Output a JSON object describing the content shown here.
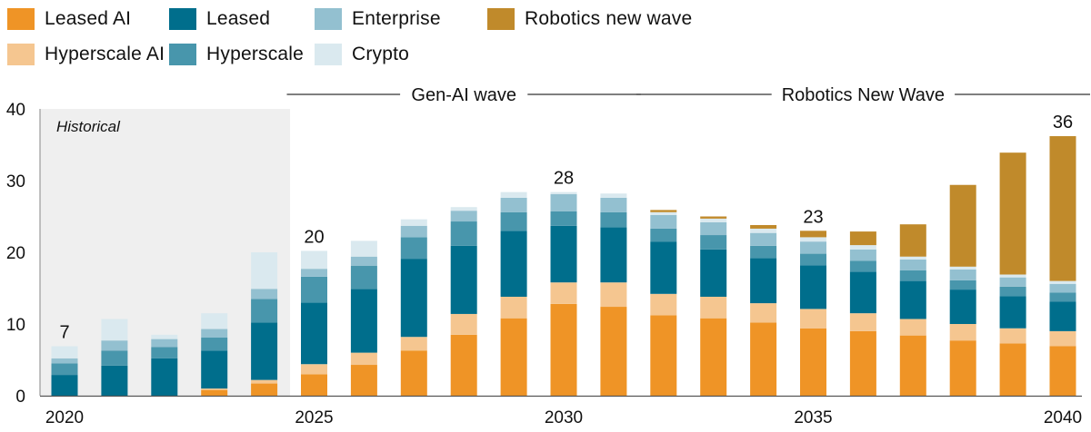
{
  "chart_data": {
    "type": "bar",
    "stacked": true,
    "title": "",
    "xlabel": "",
    "ylabel": "",
    "ylim": [
      0,
      40
    ],
    "yticks": [
      0,
      10,
      20,
      30,
      40
    ],
    "grid": false,
    "legend_position": "top",
    "categories": [
      "2020",
      "2021",
      "2022",
      "2023",
      "2024",
      "2025",
      "2026",
      "2027",
      "2028",
      "2029",
      "2030",
      "2031",
      "2032",
      "2033",
      "2034",
      "2035",
      "2036",
      "2037",
      "2038",
      "2039",
      "2040"
    ],
    "xtick_labels": [
      {
        "index": 0,
        "label": "2020"
      },
      {
        "index": 5,
        "label": "2025"
      },
      {
        "index": 10,
        "label": "2030"
      },
      {
        "index": 15,
        "label": "2035"
      },
      {
        "index": 20,
        "label": "2040"
      }
    ],
    "series": [
      {
        "name": "Leased AI",
        "color": "#EF9426",
        "values": [
          0,
          0,
          0,
          0.8,
          1.7,
          3.0,
          4.3,
          6.3,
          8.5,
          10.8,
          12.8,
          12.4,
          11.2,
          10.8,
          10.2,
          9.4,
          9.0,
          8.4,
          7.7,
          7.3,
          6.9
        ]
      },
      {
        "name": "Hyperscale AI",
        "color": "#F5C690",
        "values": [
          0,
          0,
          0,
          0.2,
          0.5,
          1.4,
          1.7,
          1.9,
          2.9,
          3.0,
          3.0,
          3.4,
          3.0,
          3.0,
          2.7,
          2.7,
          2.5,
          2.3,
          2.3,
          2.1,
          2.1
        ]
      },
      {
        "name": "Leased",
        "color": "#006E8C",
        "values": [
          2.9,
          4.2,
          5.2,
          5.3,
          8.0,
          8.6,
          8.9,
          10.9,
          9.5,
          9.2,
          7.9,
          7.7,
          7.3,
          6.6,
          6.3,
          6.1,
          5.8,
          5.3,
          4.8,
          4.5,
          4.1
        ]
      },
      {
        "name": "Hyperscale",
        "color": "#4896AC",
        "values": [
          1.6,
          2.1,
          1.6,
          1.8,
          3.3,
          3.6,
          3.2,
          3.0,
          3.4,
          2.6,
          2.0,
          2.1,
          1.8,
          2.0,
          1.7,
          1.6,
          1.5,
          1.5,
          1.3,
          1.3,
          1.3
        ]
      },
      {
        "name": "Enterprise",
        "color": "#93C0D0",
        "values": [
          0.7,
          1.4,
          1.1,
          1.2,
          1.4,
          1.1,
          1.3,
          1.6,
          1.5,
          2.0,
          2.4,
          2.0,
          1.9,
          1.8,
          1.8,
          1.7,
          1.6,
          1.5,
          1.5,
          1.3,
          1.2
        ]
      },
      {
        "name": "Crypto",
        "color": "#DAE9EF",
        "values": [
          1.7,
          3.0,
          0.6,
          2.2,
          5.1,
          2.5,
          2.2,
          0.9,
          0.5,
          0.8,
          0.3,
          0.6,
          0.4,
          0.5,
          0.6,
          0.6,
          0.6,
          0.4,
          0.4,
          0.4,
          0.4
        ]
      },
      {
        "name": "Robotics new wave",
        "color": "#C08A2B",
        "values": [
          0,
          0,
          0,
          0,
          0,
          0,
          0,
          0,
          0,
          0,
          0,
          0,
          0.3,
          0.3,
          0.5,
          0.9,
          1.9,
          4.5,
          11.4,
          17.0,
          20.2
        ]
      }
    ],
    "total_labels": [
      {
        "index": 0,
        "label": "7"
      },
      {
        "index": 5,
        "label": "20"
      },
      {
        "index": 10,
        "label": "28"
      },
      {
        "index": 15,
        "label": "23"
      },
      {
        "index": 20,
        "label": "36"
      }
    ],
    "annotations": {
      "historical": {
        "label": "Historical",
        "from_index": 0,
        "to_index": 4
      },
      "waves": [
        {
          "label": "Gen-AI wave",
          "from_index": 5,
          "to_index": 11
        },
        {
          "label": "Robotics New Wave",
          "from_index": 12,
          "to_index": 20
        }
      ]
    }
  },
  "legend": {
    "items": [
      {
        "label": "Leased AI",
        "color": "#EF9426"
      },
      {
        "label": "Leased",
        "color": "#006E8C"
      },
      {
        "label": "Enterprise",
        "color": "#93C0D0"
      },
      {
        "label": "Robotics new wave",
        "color": "#C08A2B"
      },
      {
        "label": "Hyperscale AI",
        "color": "#F5C690"
      },
      {
        "label": "Hyperscale",
        "color": "#4896AC"
      },
      {
        "label": "Crypto",
        "color": "#DAE9EF"
      }
    ]
  },
  "colors": {
    "historical_background": "#EFEFEF",
    "axis": "#555555"
  }
}
